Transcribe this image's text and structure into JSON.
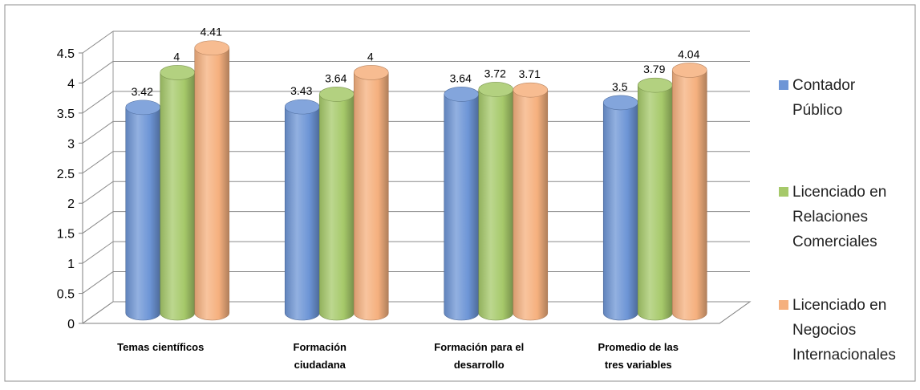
{
  "chart_data": {
    "type": "bar",
    "categories": [
      [
        "Temas científicos"
      ],
      [
        "Formación",
        "ciudadana"
      ],
      [
        "Formación para el",
        "desarrollo"
      ],
      [
        "Promedio  de las",
        "tres variables"
      ]
    ],
    "series": [
      {
        "name": [
          "Contador",
          "Público"
        ],
        "values": [
          3.42,
          3.43,
          3.64,
          3.5
        ],
        "labels": [
          "3.42",
          "3.43",
          "3.64",
          "3.5"
        ],
        "color": "#6d95d6"
      },
      {
        "name": [
          "Licenciado en",
          "Relaciones",
          "Comerciales"
        ],
        "values": [
          4,
          3.64,
          3.72,
          3.79
        ],
        "labels": [
          "4",
          "3.64",
          "3.72",
          "3.79"
        ],
        "color": "#a6c96a"
      },
      {
        "name": [
          "Licenciado en",
          "Negocios",
          "Internacionales"
        ],
        "values": [
          4.41,
          4,
          3.71,
          4.04
        ],
        "labels": [
          "4.41",
          "4",
          "3.71",
          "4.04"
        ],
        "color": "#f5b07e"
      }
    ],
    "yticks": [
      "0",
      "0.5",
      "1",
      "1.5",
      "2",
      "2.5",
      "3",
      "3.5",
      "4",
      "4.5"
    ],
    "ylim": [
      0,
      4.5
    ],
    "grid": true,
    "legend": "right",
    "style": "3d-cylinder"
  }
}
